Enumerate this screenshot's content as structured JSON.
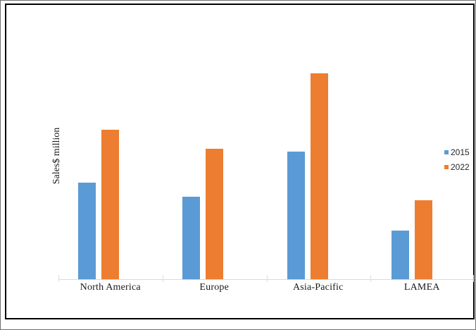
{
  "chart_data": {
    "type": "bar",
    "title": "",
    "xlabel": "",
    "ylabel": "Sales$ million",
    "categories": [
      "North America",
      "Europe",
      "Asia-Pacific",
      "LAMEA"
    ],
    "series": [
      {
        "name": "2015",
        "color": "#5B9BD5",
        "values": [
          47,
          40,
          62,
          23.5
        ]
      },
      {
        "name": "2022",
        "color": "#ED7D31",
        "values": [
          72.5,
          63.5,
          100,
          38.5
        ]
      }
    ],
    "ylim": [
      0,
      132
    ],
    "grid": false,
    "value_axis_labels_shown": false,
    "legend_position": "right",
    "axis_line_color": "#D9D9D9",
    "frame_color": "#000000",
    "background_color": "#FFFFFF"
  }
}
